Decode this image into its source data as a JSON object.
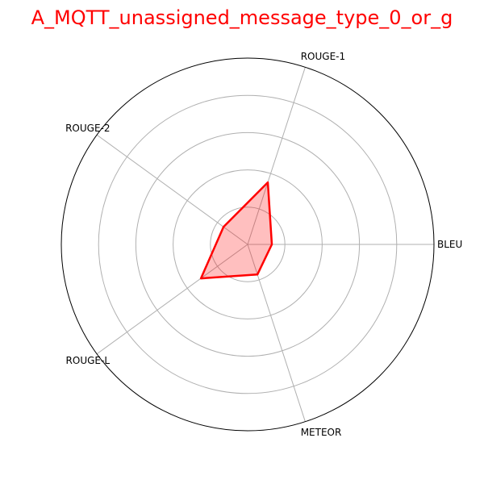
{
  "chart_data": {
    "type": "radar",
    "title": "A_MQTT_unassigned_message_type_0_or_g",
    "title_color": "#ff0000",
    "axes": [
      "BLEU",
      "ROUGE-1",
      "ROUGE-2",
      "ROUGE-L",
      "METEOR"
    ],
    "rlim": [
      0,
      1
    ],
    "rings": [
      0.2,
      0.4,
      0.6,
      0.8
    ],
    "series": [
      {
        "values": [
          0.13,
          0.35,
          0.16,
          0.31,
          0.17
        ],
        "color": "#ff0000",
        "fill": "#ff0000",
        "fill_opacity": 0.25
      }
    ],
    "grid": true,
    "legend": "none"
  }
}
